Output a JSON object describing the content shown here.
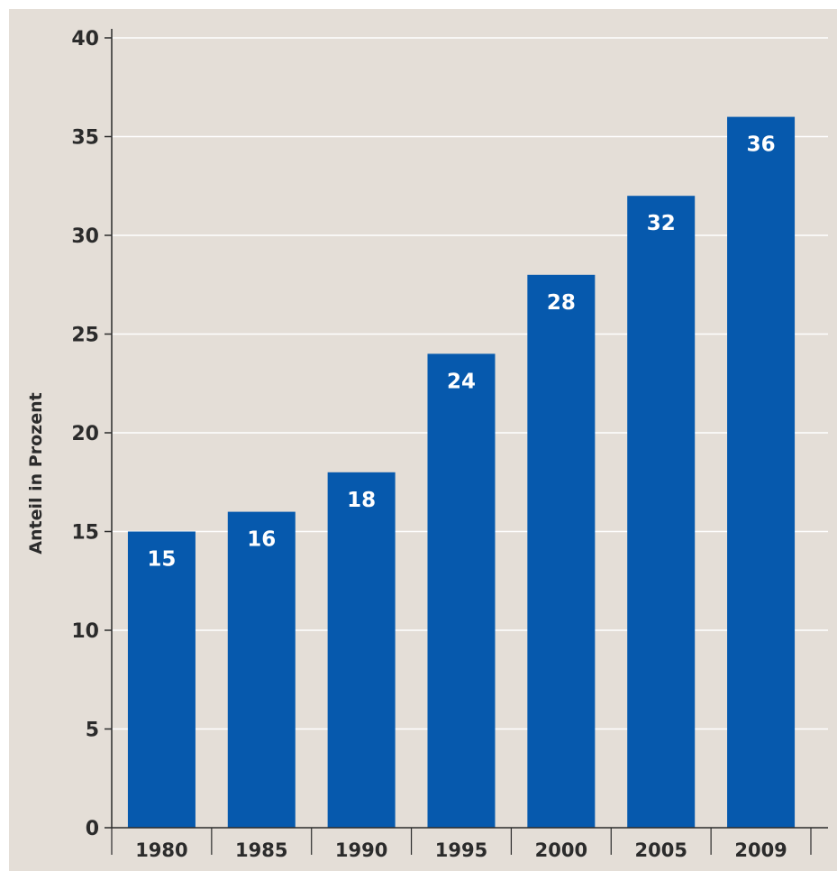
{
  "chart_data": {
    "type": "bar",
    "title": "",
    "xlabel": "",
    "ylabel": "Anteil in Prozent",
    "categories": [
      "1980",
      "1985",
      "1990",
      "1995",
      "2000",
      "2005",
      "2009"
    ],
    "values": [
      15,
      16,
      18,
      24,
      28,
      32,
      36
    ],
    "data_labels": [
      "15",
      "16",
      "18",
      "24",
      "28",
      "32",
      "36"
    ],
    "ylim": [
      0,
      40
    ],
    "yticks": [
      0,
      5,
      10,
      15,
      20,
      25,
      30,
      35,
      40
    ],
    "grid": true,
    "legend": "none",
    "colors": {
      "bar": "#0659ad",
      "background": "#e4ded7",
      "gridline": "#ffffff",
      "axis": "#2b2b2b",
      "value_label": "#ffffff"
    }
  }
}
